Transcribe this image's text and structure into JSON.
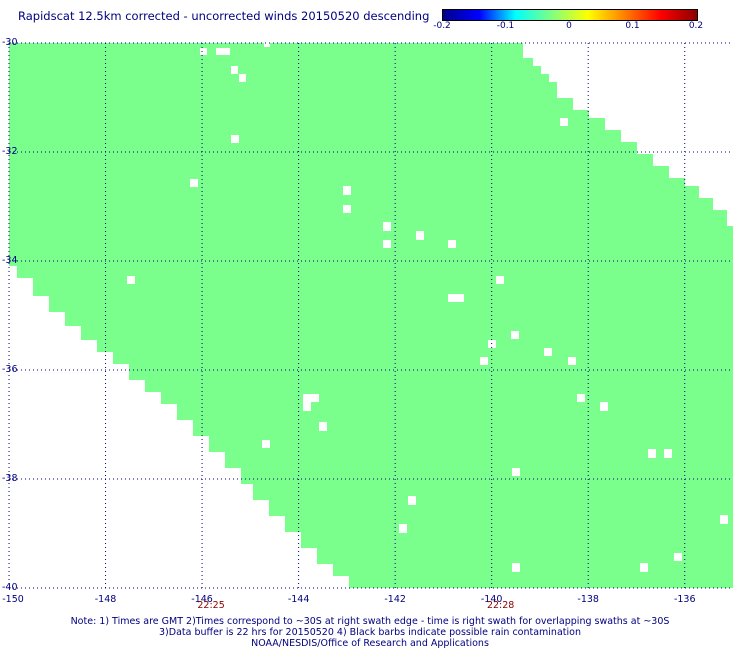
{
  "title": "Rapidscat 12.5km corrected - uncorrected winds 20150520 descending",
  "colorbar": {
    "labels": [
      "-0.2",
      "-0.1",
      "0",
      "0.1",
      "0.2"
    ],
    "range": [
      -0.2,
      0.2
    ],
    "colors": [
      "#00008b",
      "#0000ff",
      "#00ffff",
      "#80ff80",
      "#ffff00",
      "#ff8000",
      "#ff0000",
      "#8b0000"
    ]
  },
  "map": {
    "lon_range": [
      -150,
      -135
    ],
    "lat_range": [
      -30,
      -40
    ],
    "lon_ticks": [
      "-150",
      "-148",
      "-146",
      "-144",
      "-142",
      "-140",
      "-138",
      "-136"
    ],
    "lat_ticks": [
      "-30",
      "-32",
      "-34",
      "-36",
      "-38",
      "-40"
    ],
    "swath_color": "#7aff8c",
    "grid_color": "#000080",
    "pass_times": [
      {
        "label": "22:25",
        "lon": -146
      },
      {
        "label": "22:28",
        "lon": -140
      }
    ]
  },
  "notes": [
    "Note: 1) Times are GMT 2)Times correspond to ~30S at right swath edge - time is right swath for overlapping swaths at ~30S",
    "3)Data buffer is 22 hrs for 20150520 4) Black barbs indicate possible rain contamination",
    "NOAA/NESDIS/Office of Research and Applications"
  ]
}
